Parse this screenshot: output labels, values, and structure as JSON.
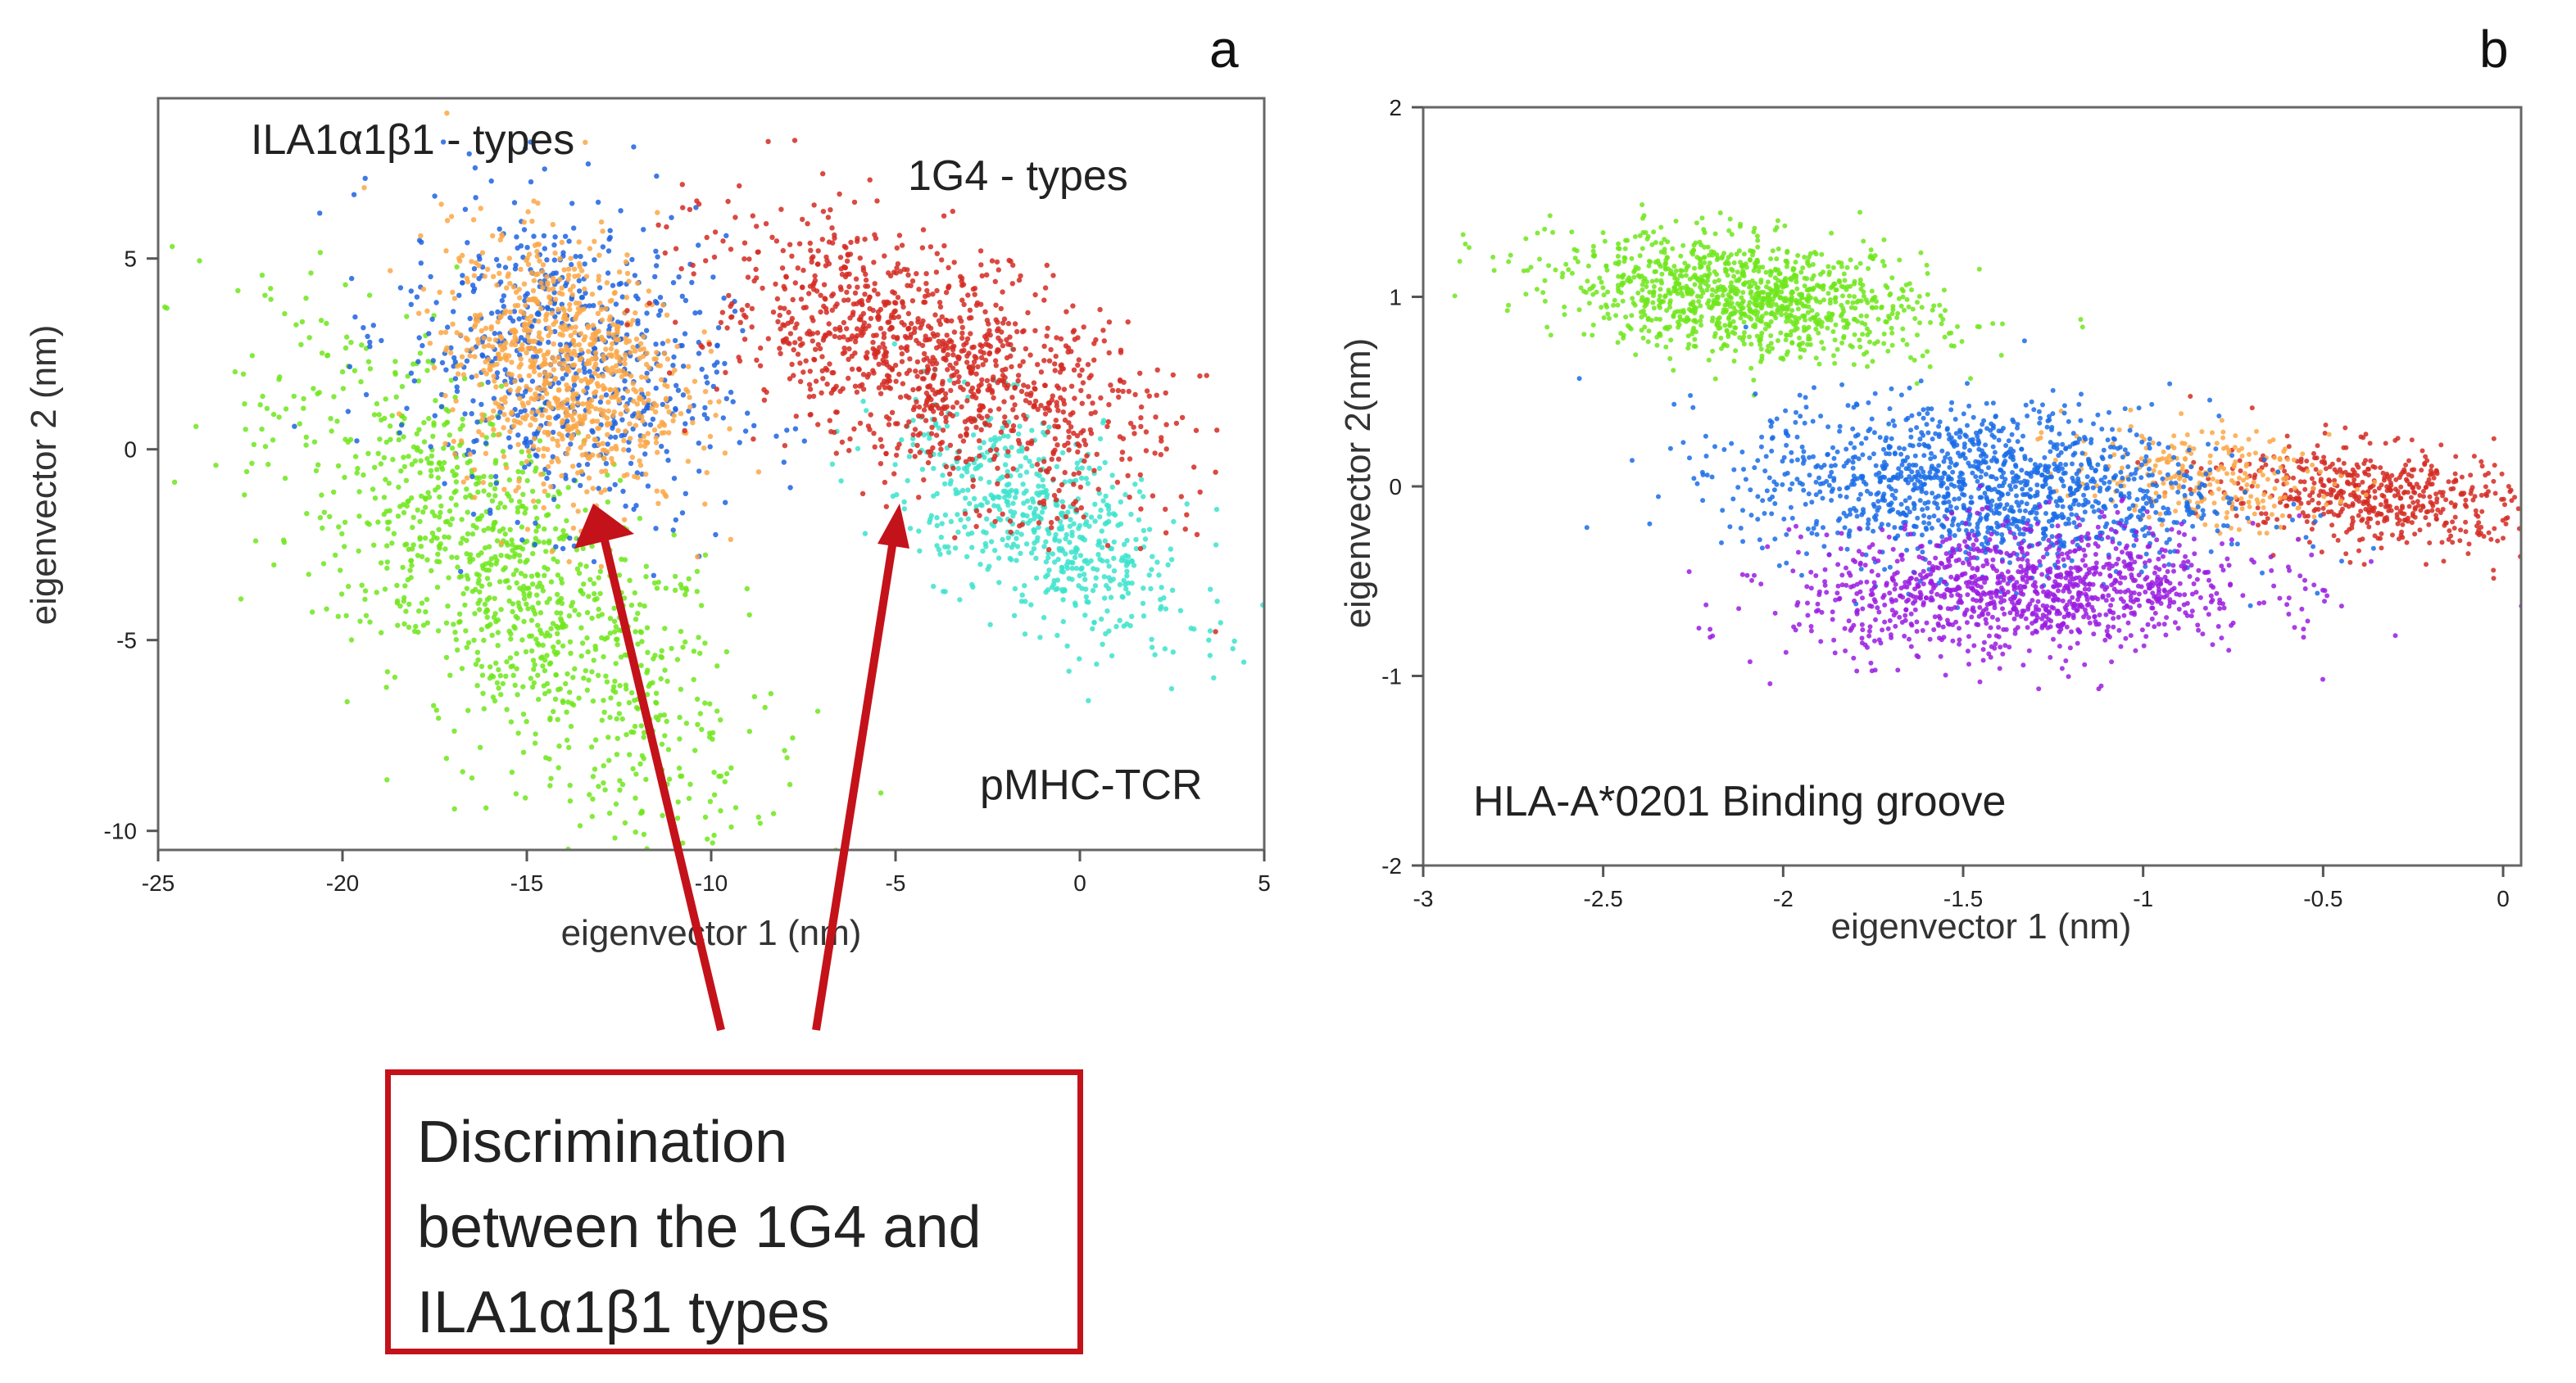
{
  "chart_data": [
    {
      "panel": "a",
      "type": "scatter",
      "xlabel": "eigenvector 1 (nm)",
      "ylabel": "eigenvector 2 (nm)",
      "xlim": [
        -25,
        5
      ],
      "ylim": [
        -10.5,
        9.2
      ],
      "xticks": [
        "-25",
        "-20",
        "-15",
        "-10",
        "-5",
        "0",
        "5"
      ],
      "yticks": [
        "-10",
        "-5",
        "0",
        "5"
      ],
      "annotations": [
        "ILA1α1β1 - types",
        "1G4 - types",
        "pMHC-TCR"
      ],
      "series": [
        {
          "name": "green",
          "color": "#6ee61b",
          "center": [
            -15.5,
            -3.5
          ],
          "spread": [
            3.2,
            3.2
          ],
          "rho": -0.72,
          "count": 1100
        },
        {
          "name": "blue",
          "color": "#1f63e0",
          "center": [
            -14.0,
            2.3
          ],
          "spread": [
            2.2,
            2.1
          ],
          "rho": -0.2,
          "count": 650
        },
        {
          "name": "orange",
          "color": "#fba745",
          "center": [
            -14.0,
            2.2
          ],
          "spread": [
            1.6,
            1.7
          ],
          "rho": -0.2,
          "count": 850
        },
        {
          "name": "cyan",
          "color": "#3ce3cc",
          "center": [
            -1.0,
            -2.0
          ],
          "spread": [
            2.0,
            1.6
          ],
          "rho": -0.6,
          "count": 600
        },
        {
          "name": "red",
          "color": "#d42a22",
          "center": [
            -4.0,
            2.3
          ],
          "spread": [
            3.0,
            1.8
          ],
          "rho": -0.55,
          "count": 1150
        }
      ]
    },
    {
      "panel": "b",
      "type": "scatter",
      "xlabel": "eigenvector 1 (nm)",
      "ylabel": "eigenvector 2(nm)",
      "xlim": [
        -3,
        0.05
      ],
      "ylim": [
        -2,
        2
      ],
      "xticks": [
        "-3",
        "-2.5",
        "-2",
        "-1.5",
        "-1",
        "-0.5",
        "0"
      ],
      "yticks": [
        "-2",
        "-1",
        "0",
        "1",
        "2"
      ],
      "annotations": [
        "HLA-A*0201 Binding groove"
      ],
      "series": [
        {
          "name": "green",
          "color": "#6ee61b",
          "center": [
            -2.1,
            1.0
          ],
          "spread": [
            0.26,
            0.16
          ],
          "rho": -0.3,
          "count": 1100
        },
        {
          "name": "red",
          "color": "#d42a22",
          "center": [
            -0.35,
            -0.05
          ],
          "spread": [
            0.22,
            0.14
          ],
          "rho": -0.3,
          "count": 550
        },
        {
          "name": "orange",
          "color": "#fba745",
          "center": [
            -0.85,
            0.05
          ],
          "spread": [
            0.18,
            0.13
          ],
          "rho": -0.2,
          "count": 250
        },
        {
          "name": "blue",
          "color": "#1a6ce8",
          "center": [
            -1.45,
            0.0
          ],
          "spread": [
            0.33,
            0.22
          ],
          "rho": -0.15,
          "count": 1300
        },
        {
          "name": "purple",
          "color": "#9a1ce0",
          "center": [
            -1.32,
            -0.55
          ],
          "spread": [
            0.32,
            0.17
          ],
          "rho": 0.1,
          "count": 1100
        }
      ]
    }
  ],
  "callout": {
    "lines": [
      "Discrimination",
      "between the 1G4 and",
      "ILA1α1β1 types"
    ],
    "color": "#c4121a"
  }
}
